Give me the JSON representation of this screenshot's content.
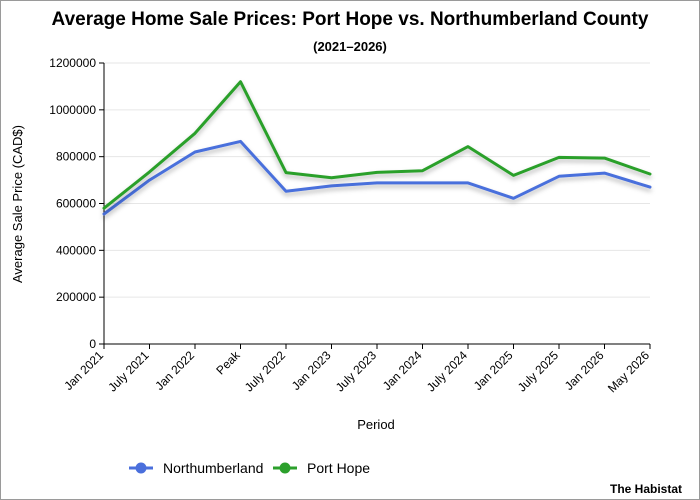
{
  "chart_data": {
    "type": "line",
    "title": "Average Home Sale Prices: Port Hope vs. Northumberland County",
    "subtitle": "(2021–2026)",
    "xlabel": "Period",
    "ylabel": "Average Sale Price (CAD$)",
    "ylim": [
      0,
      1200000
    ],
    "yticks": [
      0,
      200000,
      400000,
      600000,
      800000,
      1000000,
      1200000
    ],
    "grid": true,
    "legend_position": "bottom",
    "categories": [
      "Jan 2021",
      "July 2021",
      "Jan 2022",
      "Peak",
      "July 2022",
      "Jan 2023",
      "July 2023",
      "Jan 2024",
      "July 2024",
      "Jan 2025",
      "July 2025",
      "Jan 2026",
      "May 2026"
    ],
    "series": [
      {
        "name": "Northumberland",
        "color": "#4a6fdc",
        "values": [
          555000,
          700000,
          820000,
          865000,
          652000,
          675000,
          688000,
          688000,
          688000,
          622000,
          716000,
          730000,
          670000
        ]
      },
      {
        "name": "Port Hope",
        "color": "#2ca02c",
        "values": [
          580000,
          735000,
          900000,
          1120000,
          732000,
          710000,
          733000,
          740000,
          843000,
          720000,
          797000,
          794000,
          726000
        ]
      }
    ]
  },
  "credit": "The Habistat"
}
